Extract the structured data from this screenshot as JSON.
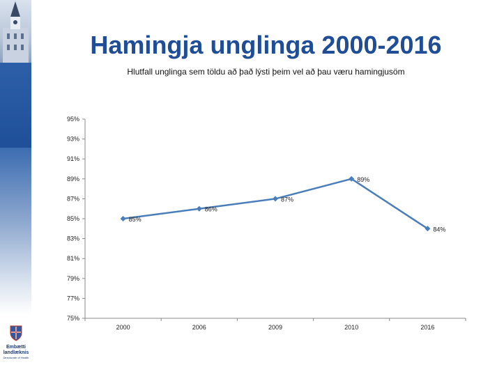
{
  "title": "Hamingja unglinga 2000-2016",
  "subtitle": "Hlutfall unglinga sem töldu að það lýsti þeim vel að þau væru hamingjusöm",
  "logo": {
    "line1": "Embætti",
    "line2": "landlæknis",
    "line3": "Directorate of Health"
  },
  "colors": {
    "title": "#1f4e96",
    "series": "#4a7ebb",
    "sidebar": "#1f4f99"
  },
  "chart_data": {
    "type": "line",
    "title": "",
    "xlabel": "",
    "ylabel": "",
    "categories": [
      "2000",
      "2006",
      "2009",
      "2010",
      "2016"
    ],
    "series": [
      {
        "values": [
          85,
          86,
          87,
          89,
          84
        ]
      }
    ],
    "data_labels": [
      "85%",
      "86%",
      "87%",
      "89%",
      "84%"
    ],
    "ylim": [
      75,
      95
    ],
    "yticks": [
      75,
      77,
      79,
      81,
      83,
      85,
      87,
      89,
      91,
      93,
      95
    ],
    "ytick_labels": [
      "75%",
      "77%",
      "79%",
      "81%",
      "83%",
      "85%",
      "87%",
      "89%",
      "91%",
      "93%",
      "95%"
    ],
    "grid": false,
    "legend": "none",
    "marker": "diamond"
  }
}
